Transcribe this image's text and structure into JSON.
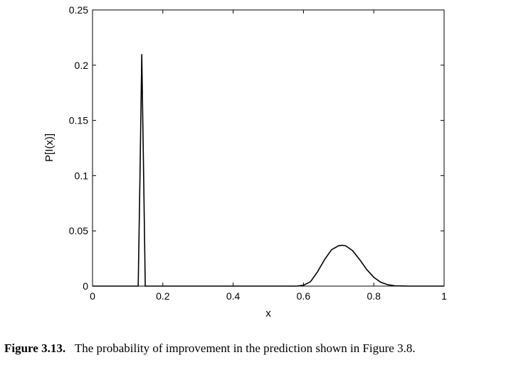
{
  "chart_data": {
    "type": "line",
    "xlabel": "x",
    "ylabel": "P[I(x)]",
    "xlim": [
      0,
      1
    ],
    "ylim": [
      0,
      0.25
    ],
    "x_ticks": [
      0,
      0.2,
      0.4,
      0.6,
      0.8,
      1
    ],
    "x_tick_labels": [
      "0",
      "0.2",
      "0.4",
      "0.6",
      "0.8",
      "1"
    ],
    "y_ticks": [
      0,
      0.05,
      0.1,
      0.15,
      0.2,
      0.25
    ],
    "y_tick_labels": [
      "0",
      "0.05",
      "0.1",
      "0.15",
      "0.2",
      "0.25"
    ],
    "grid": false,
    "series": [
      {
        "color": "#000000",
        "x": [
          0,
          0.1,
          0.125,
          0.13,
          0.135,
          0.14,
          0.145,
          0.15,
          0.155,
          0.2,
          0.4,
          0.58,
          0.6,
          0.62,
          0.64,
          0.66,
          0.68,
          0.7,
          0.71,
          0.72,
          0.74,
          0.76,
          0.78,
          0.8,
          0.82,
          0.84,
          0.86,
          0.88,
          0.9,
          0.95,
          1
        ],
        "y": [
          0,
          0,
          0,
          0,
          0.1,
          0.21,
          0.11,
          0,
          0,
          0,
          0,
          0,
          0.0008,
          0.004,
          0.013,
          0.024,
          0.033,
          0.0365,
          0.037,
          0.0365,
          0.032,
          0.024,
          0.015,
          0.008,
          0.0035,
          0.0012,
          0.0003,
          0.0001,
          0,
          0,
          0
        ]
      }
    ]
  },
  "caption": {
    "label": "Figure 3.13.",
    "text": "The probability of improvement in the prediction shown in Figure 3.8."
  }
}
